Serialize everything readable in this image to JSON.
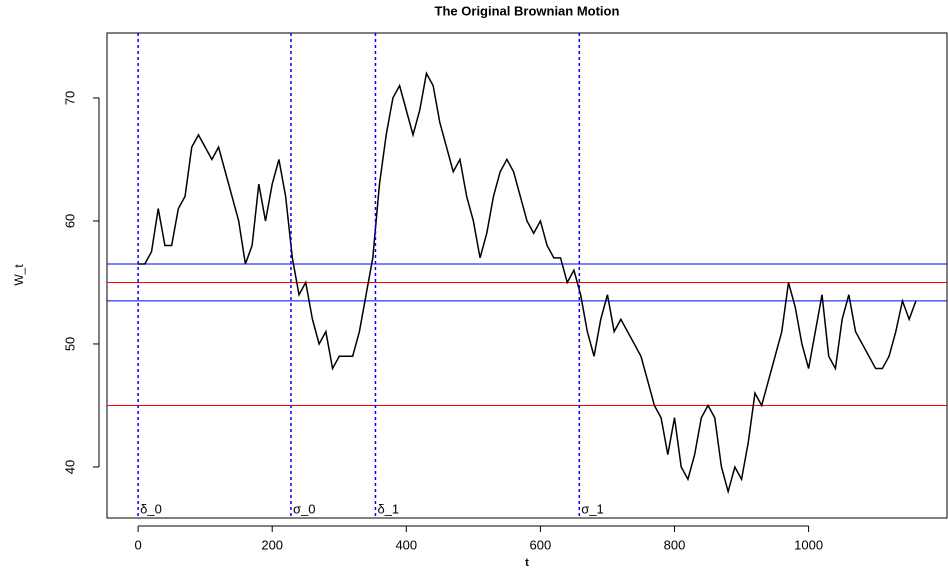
{
  "chart_data": {
    "type": "line",
    "title": "The Original Brownian Motion",
    "x_label": "t",
    "y_label": "W_t",
    "x": [
      0,
      10,
      20,
      30,
      40,
      50,
      60,
      70,
      80,
      90,
      100,
      110,
      120,
      130,
      140,
      150,
      160,
      170,
      180,
      190,
      200,
      210,
      220,
      230,
      240,
      250,
      260,
      270,
      280,
      290,
      300,
      310,
      320,
      330,
      340,
      350,
      360,
      370,
      380,
      390,
      400,
      410,
      420,
      430,
      440,
      450,
      460,
      470,
      480,
      490,
      500,
      510,
      520,
      530,
      540,
      550,
      560,
      570,
      580,
      590,
      600,
      610,
      620,
      630,
      640,
      650,
      660,
      670,
      680,
      690,
      700,
      710,
      720,
      730,
      740,
      750,
      760,
      770,
      780,
      790,
      800,
      810,
      820,
      830,
      840,
      850,
      860,
      870,
      880,
      890,
      900,
      910,
      920,
      930,
      940,
      950,
      960,
      970,
      980,
      990,
      1000,
      1010,
      1020,
      1030,
      1040,
      1050,
      1060,
      1070,
      1080,
      1090,
      1100,
      1110,
      1120,
      1130,
      1140,
      1150,
      1160
    ],
    "series": [
      {
        "color": "#000000",
        "values": [
          56.5,
          56.5,
          57.5,
          61,
          58,
          58,
          61,
          62,
          66,
          67,
          66,
          65,
          66,
          64,
          62,
          60,
          56.5,
          58,
          63,
          60,
          63,
          65,
          62,
          57,
          54,
          55,
          52,
          50,
          51,
          48,
          49,
          49,
          49,
          51,
          54,
          57,
          63,
          67,
          70,
          71,
          69,
          67,
          69,
          72,
          71,
          68,
          66,
          64,
          65,
          62,
          60,
          57,
          59,
          62,
          64,
          65,
          64,
          62,
          60,
          59,
          60,
          58,
          57,
          57,
          55,
          56,
          54,
          51,
          49,
          52,
          54,
          51,
          52,
          51,
          50,
          49,
          47,
          45,
          44,
          41,
          44,
          40,
          39,
          41,
          44,
          45,
          44,
          40,
          38,
          40,
          39,
          42,
          46,
          45,
          47,
          49,
          51,
          55,
          53,
          50,
          48,
          51,
          54,
          49,
          48,
          52,
          54,
          51,
          50,
          49,
          48,
          48,
          49,
          51,
          53.5,
          52,
          53.5
        ]
      }
    ],
    "hlines": [
      {
        "y": 56.5,
        "color": "#0000ff"
      },
      {
        "y": 53.5,
        "color": "#0000ff"
      },
      {
        "y": 55,
        "color": "#ff0000"
      },
      {
        "y": 45,
        "color": "#ff0000"
      }
    ],
    "vlines": [
      {
        "x": 0,
        "label": "δ_0"
      },
      {
        "x": 228,
        "label": "σ_0"
      },
      {
        "x": 354,
        "label": "δ_1"
      },
      {
        "x": 658,
        "label": "σ_1"
      }
    ],
    "vline_color": "#0000ff",
    "xlim": [
      -46.4,
      1206.4
    ],
    "ylim": [
      35.85,
      75.28
    ],
    "xticks": [
      0,
      200,
      400,
      600,
      800,
      1000
    ],
    "yticks": [
      40,
      50,
      60,
      70
    ]
  }
}
